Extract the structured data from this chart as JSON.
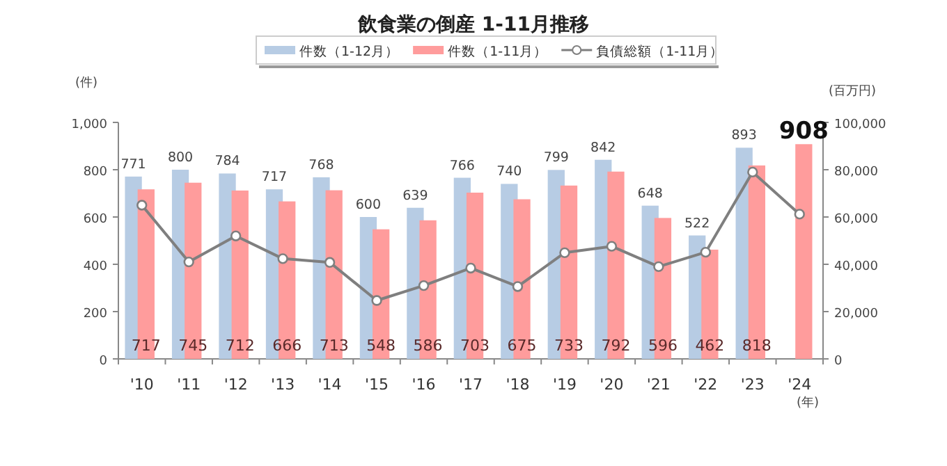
{
  "chart_data": {
    "type": "bar",
    "title": "飲食業の倒産 1-11月推移",
    "xlabel": "(年)",
    "ylabel": "(件)",
    "y2label": "(百万円)",
    "categories": [
      "'10",
      "'11",
      "'12",
      "'13",
      "'14",
      "'15",
      "'16",
      "'17",
      "'18",
      "'19",
      "'20",
      "'21",
      "'22",
      "'23",
      "'24"
    ],
    "series": [
      {
        "name": "件数（1-12月）",
        "color": "#b7cce4",
        "values": [
          771,
          800,
          784,
          717,
          768,
          600,
          639,
          766,
          740,
          799,
          842,
          648,
          522,
          893,
          null
        ],
        "value_labels": [
          "771",
          "800",
          "784",
          "717",
          "768",
          "600",
          "639",
          "766",
          "740",
          "799",
          "842",
          "648",
          "522",
          "893",
          null
        ]
      },
      {
        "name": "件数（1-11月）",
        "color": "#ff9c9c",
        "values": [
          717,
          745,
          712,
          666,
          713,
          548,
          586,
          703,
          675,
          733,
          792,
          596,
          462,
          818,
          908
        ],
        "value_labels": [
          "717",
          "745",
          "712",
          "666",
          "713",
          "548",
          "586",
          "703",
          "675",
          "733",
          "792",
          "596",
          "462",
          "818",
          "908"
        ]
      },
      {
        "name": "負債総額（1-11月）",
        "type": "line",
        "axis": "y2",
        "color": "#7f7f7f",
        "marker": "circle",
        "values": [
          65000,
          41000,
          52000,
          42400,
          40800,
          24700,
          31000,
          38400,
          30600,
          44900,
          47600,
          39000,
          45100,
          79000,
          61200
        ]
      }
    ],
    "ylim": [
      0,
      1000
    ],
    "yticks": [
      0,
      200,
      400,
      600,
      800,
      {
        "value": 1000,
        "label": "1,000"
      }
    ],
    "y2lim": [
      0,
      100000
    ],
    "y2ticks": [
      0,
      {
        "value": 20000,
        "label": "20,000"
      },
      {
        "value": 40000,
        "label": "40,000"
      },
      {
        "value": 60000,
        "label": "60,000"
      },
      {
        "value": 80000,
        "label": "80,000"
      },
      {
        "value": 100000,
        "label": "100,000"
      }
    ],
    "grid": false,
    "legend": "top"
  }
}
